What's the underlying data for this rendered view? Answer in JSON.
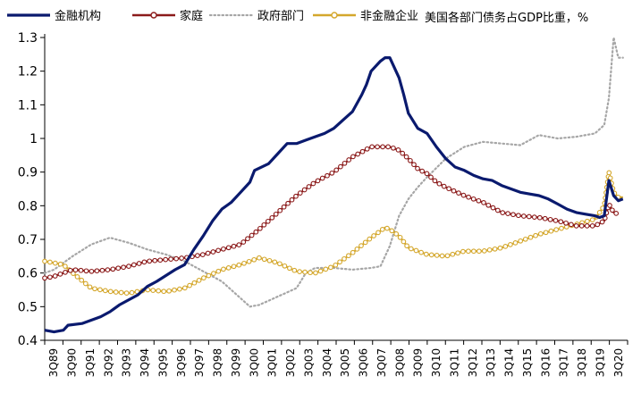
{
  "chart_data": {
    "type": "line",
    "title": "",
    "unit_note": "美国各部门债务占GDP比重，%",
    "xlabel": "",
    "ylabel": "",
    "ylim": [
      0.4,
      1.3
    ],
    "yticks": [
      "0.4",
      "0.5",
      "0.6",
      "0.7",
      "0.8",
      "0.9",
      "1",
      "1.1",
      "1.2",
      "1.3"
    ],
    "grid": false,
    "legend_position": "top",
    "x_labels": [
      "3Q89",
      "3Q90",
      "3Q91",
      "3Q92",
      "3Q93",
      "3Q94",
      "3Q95",
      "3Q96",
      "3Q97",
      "3Q98",
      "3Q99",
      "3Q00",
      "3Q01",
      "3Q02",
      "3Q03",
      "3Q04",
      "3Q05",
      "3Q06",
      "3Q07",
      "3Q08",
      "3Q09",
      "3Q10",
      "3Q11",
      "3Q12",
      "3Q13",
      "3Q14",
      "3Q15",
      "3Q16",
      "3Q17",
      "3Q18",
      "3Q19",
      "3Q20"
    ],
    "x_start": 1989.5,
    "x_end": 2020.75,
    "series": [
      {
        "name": "金融机构",
        "color": "#0a1a6e",
        "style": "solid",
        "points": [
          [
            1989.5,
            0.43
          ],
          [
            1990.0,
            0.425
          ],
          [
            1990.5,
            0.43
          ],
          [
            1990.75,
            0.445
          ],
          [
            1991.5,
            0.45
          ],
          [
            1992.5,
            0.47
          ],
          [
            1993.0,
            0.485
          ],
          [
            1993.5,
            0.505
          ],
          [
            1994.5,
            0.535
          ],
          [
            1995.0,
            0.56
          ],
          [
            1995.5,
            0.575
          ],
          [
            1996.5,
            0.61
          ],
          [
            1997.0,
            0.625
          ],
          [
            1997.5,
            0.67
          ],
          [
            1998.0,
            0.71
          ],
          [
            1998.5,
            0.755
          ],
          [
            1999.0,
            0.79
          ],
          [
            1999.5,
            0.81
          ],
          [
            2000.0,
            0.84
          ],
          [
            2000.5,
            0.87
          ],
          [
            2000.75,
            0.905
          ],
          [
            2001.5,
            0.925
          ],
          [
            2002.0,
            0.955
          ],
          [
            2002.5,
            0.985
          ],
          [
            2003.0,
            0.985
          ],
          [
            2003.5,
            0.995
          ],
          [
            2004.0,
            1.005
          ],
          [
            2004.5,
            1.015
          ],
          [
            2005.0,
            1.03
          ],
          [
            2005.5,
            1.055
          ],
          [
            2006.0,
            1.08
          ],
          [
            2006.5,
            1.13
          ],
          [
            2006.75,
            1.16
          ],
          [
            2007.0,
            1.2
          ],
          [
            2007.5,
            1.23
          ],
          [
            2007.75,
            1.24
          ],
          [
            2008.0,
            1.24
          ],
          [
            2008.5,
            1.18
          ],
          [
            2008.75,
            1.13
          ],
          [
            2009.0,
            1.075
          ],
          [
            2009.5,
            1.03
          ],
          [
            2010.0,
            1.015
          ],
          [
            2010.5,
            0.975
          ],
          [
            2011.0,
            0.94
          ],
          [
            2011.5,
            0.915
          ],
          [
            2012.0,
            0.905
          ],
          [
            2012.5,
            0.89
          ],
          [
            2013.0,
            0.88
          ],
          [
            2013.5,
            0.875
          ],
          [
            2014.0,
            0.86
          ],
          [
            2014.5,
            0.85
          ],
          [
            2015.0,
            0.84
          ],
          [
            2015.5,
            0.835
          ],
          [
            2016.0,
            0.83
          ],
          [
            2016.5,
            0.82
          ],
          [
            2017.0,
            0.805
          ],
          [
            2017.5,
            0.79
          ],
          [
            2018.0,
            0.78
          ],
          [
            2018.5,
            0.775
          ],
          [
            2019.0,
            0.77
          ],
          [
            2019.25,
            0.765
          ],
          [
            2019.5,
            0.77
          ],
          [
            2019.75,
            0.875
          ],
          [
            2020.0,
            0.83
          ],
          [
            2020.25,
            0.815
          ],
          [
            2020.5,
            0.82
          ]
        ]
      },
      {
        "name": "家庭",
        "color": "#8b1a1a",
        "style": "marker",
        "points": [
          [
            1989.5,
            0.585
          ],
          [
            1990.0,
            0.59
          ],
          [
            1990.5,
            0.6
          ],
          [
            1991.0,
            0.61
          ],
          [
            1992.0,
            0.605
          ],
          [
            1993.0,
            0.61
          ],
          [
            1994.0,
            0.62
          ],
          [
            1995.0,
            0.635
          ],
          [
            1996.0,
            0.64
          ],
          [
            1997.0,
            0.645
          ],
          [
            1998.0,
            0.655
          ],
          [
            1999.0,
            0.67
          ],
          [
            2000.0,
            0.685
          ],
          [
            2001.0,
            0.73
          ],
          [
            2002.0,
            0.78
          ],
          [
            2003.0,
            0.83
          ],
          [
            2004.0,
            0.87
          ],
          [
            2005.0,
            0.9
          ],
          [
            2006.0,
            0.945
          ],
          [
            2007.0,
            0.975
          ],
          [
            2007.5,
            0.975
          ],
          [
            2008.0,
            0.975
          ],
          [
            2008.5,
            0.965
          ],
          [
            2009.0,
            0.94
          ],
          [
            2009.5,
            0.91
          ],
          [
            2010.0,
            0.895
          ],
          [
            2010.5,
            0.87
          ],
          [
            2011.0,
            0.855
          ],
          [
            2012.0,
            0.83
          ],
          [
            2013.0,
            0.81
          ],
          [
            2014.0,
            0.78
          ],
          [
            2015.0,
            0.77
          ],
          [
            2016.0,
            0.765
          ],
          [
            2017.0,
            0.755
          ],
          [
            2018.0,
            0.74
          ],
          [
            2019.0,
            0.74
          ],
          [
            2019.5,
            0.755
          ],
          [
            2019.75,
            0.805
          ],
          [
            2020.0,
            0.78
          ],
          [
            2020.25,
            0.775
          ]
        ]
      },
      {
        "name": "政府部门",
        "color": "#a6a6a6",
        "style": "dotted",
        "points": [
          [
            1989.5,
            0.6
          ],
          [
            1990.0,
            0.61
          ],
          [
            1991.0,
            0.65
          ],
          [
            1992.0,
            0.685
          ],
          [
            1993.0,
            0.705
          ],
          [
            1994.0,
            0.69
          ],
          [
            1995.0,
            0.67
          ],
          [
            1996.0,
            0.655
          ],
          [
            1997.0,
            0.635
          ],
          [
            1998.0,
            0.605
          ],
          [
            1999.0,
            0.575
          ],
          [
            2000.0,
            0.525
          ],
          [
            2000.5,
            0.5
          ],
          [
            2001.0,
            0.505
          ],
          [
            2002.0,
            0.53
          ],
          [
            2003.0,
            0.555
          ],
          [
            2003.5,
            0.6
          ],
          [
            2004.0,
            0.615
          ],
          [
            2005.0,
            0.615
          ],
          [
            2006.0,
            0.61
          ],
          [
            2007.0,
            0.615
          ],
          [
            2007.5,
            0.62
          ],
          [
            2008.0,
            0.68
          ],
          [
            2008.5,
            0.77
          ],
          [
            2009.0,
            0.82
          ],
          [
            2009.5,
            0.855
          ],
          [
            2010.0,
            0.885
          ],
          [
            2011.0,
            0.94
          ],
          [
            2012.0,
            0.975
          ],
          [
            2013.0,
            0.99
          ],
          [
            2014.0,
            0.985
          ],
          [
            2015.0,
            0.98
          ],
          [
            2016.0,
            1.01
          ],
          [
            2017.0,
            1.0
          ],
          [
            2018.0,
            1.005
          ],
          [
            2019.0,
            1.015
          ],
          [
            2019.5,
            1.04
          ],
          [
            2019.75,
            1.12
          ],
          [
            2020.0,
            1.3
          ],
          [
            2020.25,
            1.24
          ],
          [
            2020.5,
            1.24
          ]
        ]
      },
      {
        "name": "非金融企业",
        "color": "#d4a72c",
        "style": "marker",
        "points": [
          [
            1989.5,
            0.635
          ],
          [
            1990.0,
            0.63
          ],
          [
            1990.5,
            0.625
          ],
          [
            1991.0,
            0.6
          ],
          [
            1992.0,
            0.555
          ],
          [
            1993.0,
            0.545
          ],
          [
            1994.0,
            0.54
          ],
          [
            1995.0,
            0.55
          ],
          [
            1996.0,
            0.545
          ],
          [
            1997.0,
            0.555
          ],
          [
            1998.0,
            0.585
          ],
          [
            1999.0,
            0.61
          ],
          [
            2000.0,
            0.625
          ],
          [
            2001.0,
            0.645
          ],
          [
            2002.0,
            0.63
          ],
          [
            2003.0,
            0.605
          ],
          [
            2004.0,
            0.6
          ],
          [
            2005.0,
            0.62
          ],
          [
            2006.0,
            0.66
          ],
          [
            2007.0,
            0.705
          ],
          [
            2007.75,
            0.735
          ],
          [
            2008.0,
            0.73
          ],
          [
            2008.5,
            0.71
          ],
          [
            2009.0,
            0.675
          ],
          [
            2010.0,
            0.655
          ],
          [
            2011.0,
            0.65
          ],
          [
            2012.0,
            0.665
          ],
          [
            2013.0,
            0.665
          ],
          [
            2014.0,
            0.675
          ],
          [
            2015.0,
            0.695
          ],
          [
            2016.0,
            0.715
          ],
          [
            2017.0,
            0.73
          ],
          [
            2018.0,
            0.745
          ],
          [
            2019.0,
            0.76
          ],
          [
            2019.5,
            0.8
          ],
          [
            2019.75,
            0.9
          ],
          [
            2020.0,
            0.84
          ],
          [
            2020.25,
            0.825
          ],
          [
            2020.5,
            0.825
          ]
        ]
      }
    ]
  }
}
